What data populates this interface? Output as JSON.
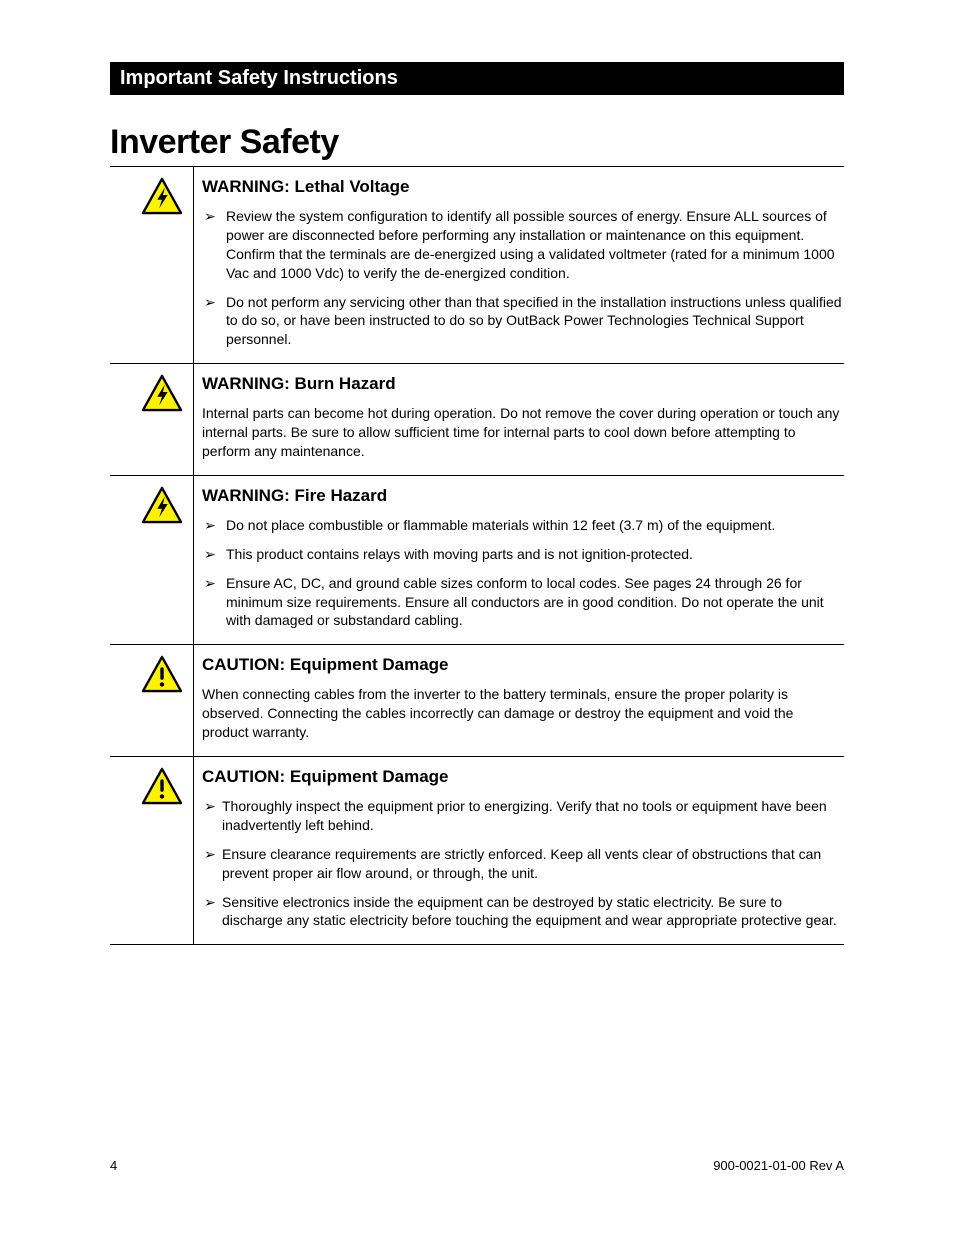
{
  "banner": "Important Safety Instructions",
  "page_title": "Inverter Safety",
  "icon_colors": {
    "triangle_fill": "#fff200",
    "triangle_stroke": "#000000",
    "symbol": "#000000"
  },
  "sections": [
    {
      "icon": "bolt",
      "heading": "WARNING:  Lethal Voltage",
      "type": "list",
      "items": [
        "Review the system configuration to identify all possible sources of energy.  Ensure ALL sources of power are disconnected before performing any installation or maintenance on this equipment.  Confirm that the terminals are de-energized using a validated voltmeter (rated for a minimum 1000 Vac and 1000 Vdc) to verify the de-energized condition.",
        "Do not perform any servicing other than that specified in the installation instructions unless qualified to do so, or have been instructed to do so by OutBack Power Technologies Technical Support personnel."
      ]
    },
    {
      "icon": "bolt",
      "heading": "WARNING:  Burn Hazard",
      "type": "para",
      "text": "Internal parts can become hot during operation.  Do not remove the cover during operation or touch any internal parts.  Be sure to allow sufficient time for internal parts to cool down before attempting to perform any maintenance."
    },
    {
      "icon": "bolt",
      "heading": "WARNING:  Fire Hazard",
      "type": "list",
      "items": [
        "Do not place combustible or flammable materials within 12 feet (3.7 m) of the equipment.",
        "This product contains relays with moving parts and is not ignition-protected.",
        "Ensure AC, DC, and ground cable sizes conform to local codes.  See pages 24 through 26 for minimum size requirements.  Ensure all conductors are in good condition.  Do not operate the unit with damaged or substandard cabling."
      ]
    },
    {
      "icon": "exclaim",
      "heading": "CAUTION:  Equipment Damage",
      "type": "para",
      "text": "When connecting cables from the inverter to the battery terminals, ensure the proper polarity is observed.  Connecting the cables incorrectly can damage or destroy the equipment and void the product warranty."
    },
    {
      "icon": "exclaim",
      "heading": "CAUTION:  Equipment Damage",
      "type": "list_tight",
      "items": [
        "Thoroughly inspect the equipment prior to energizing.  Verify that no tools or equipment have been inadvertently left behind.",
        "Ensure clearance requirements are strictly enforced.  Keep all vents clear of obstructions that can prevent proper air flow around, or through, the unit.",
        "Sensitive electronics inside the equipment can be destroyed by static electricity.  Be sure to discharge any static electricity before touching the equipment and wear appropriate protective gear."
      ]
    }
  ],
  "footer": {
    "page_number": "4",
    "doc_id": "900-0021-01-00 Rev A"
  }
}
